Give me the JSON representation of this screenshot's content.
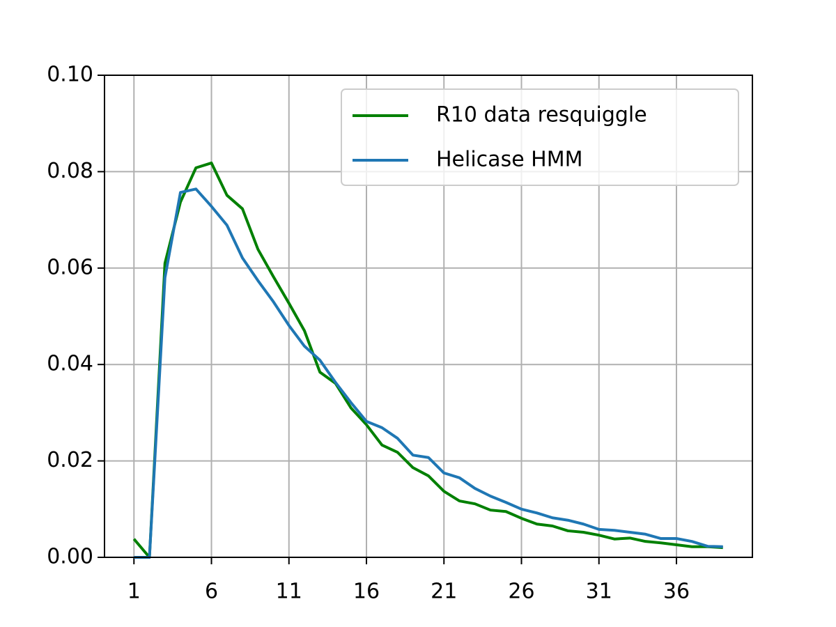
{
  "chart_data": {
    "type": "line",
    "x": [
      1,
      2,
      3,
      4,
      5,
      6,
      7,
      8,
      9,
      10,
      11,
      12,
      13,
      14,
      15,
      16,
      17,
      18,
      19,
      20,
      21,
      22,
      23,
      24,
      25,
      26,
      27,
      28,
      29,
      30,
      31,
      32,
      33,
      34,
      35,
      36,
      37,
      38,
      39
    ],
    "series": [
      {
        "name": "R10 data resquiggle",
        "color": "#008000",
        "values": [
          0.0038,
          0.0,
          0.061,
          0.0737,
          0.0808,
          0.0818,
          0.0751,
          0.0723,
          0.0639,
          0.0582,
          0.0527,
          0.047,
          0.0384,
          0.0361,
          0.031,
          0.0275,
          0.0233,
          0.0218,
          0.0186,
          0.0169,
          0.0137,
          0.0117,
          0.0111,
          0.0098,
          0.0095,
          0.0081,
          0.0069,
          0.0065,
          0.0055,
          0.0052,
          0.0046,
          0.0038,
          0.004,
          0.0033,
          0.003,
          0.0026,
          0.0022,
          0.0022,
          0.002
        ]
      },
      {
        "name": "Helicase HMM",
        "color": "#1f77b4",
        "values": [
          0.0,
          0.0,
          0.058,
          0.0757,
          0.0764,
          0.0728,
          0.0689,
          0.0621,
          0.0574,
          0.053,
          0.0481,
          0.0438,
          0.0409,
          0.0363,
          0.0321,
          0.0282,
          0.0269,
          0.0247,
          0.0212,
          0.0207,
          0.0175,
          0.0165,
          0.0143,
          0.0127,
          0.0114,
          0.01,
          0.0092,
          0.0082,
          0.0077,
          0.0069,
          0.0058,
          0.0056,
          0.0052,
          0.0048,
          0.0039,
          0.0039,
          0.0033,
          0.0023,
          0.0022
        ]
      }
    ],
    "xlim": [
      -0.9,
      40.9
    ],
    "xticks": [
      1,
      6,
      11,
      16,
      21,
      26,
      31,
      36
    ],
    "ylim": [
      0,
      0.1
    ],
    "yticks": [
      {
        "value": 0,
        "label": "0.00"
      },
      {
        "value": 0.02,
        "label": "0.02"
      },
      {
        "value": 0.04,
        "label": "0.04"
      },
      {
        "value": 0.06,
        "label": "0.06"
      },
      {
        "value": 0.08,
        "label": "0.08"
      },
      {
        "value": 0.1,
        "label": "0.10"
      }
    ],
    "grid": true,
    "legend": "upper right"
  }
}
